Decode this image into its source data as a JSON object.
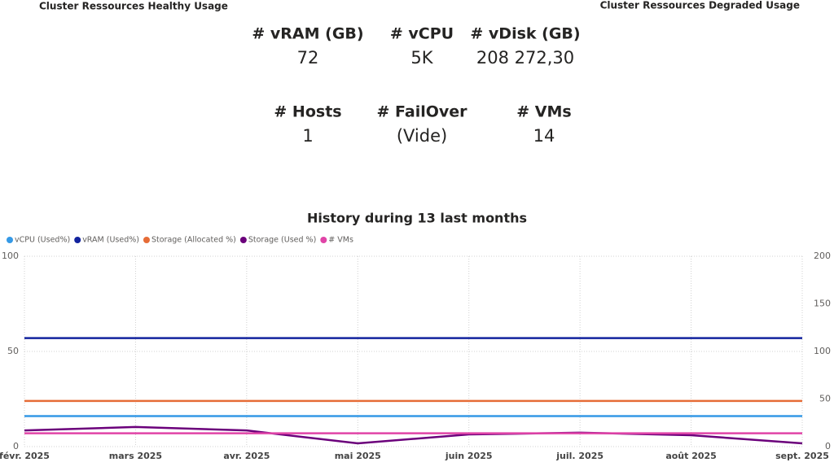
{
  "header": {
    "left": "Cluster Ressources Healthy Usage",
    "right": "Cluster Ressources Degraded Usage"
  },
  "cards": [
    {
      "label": "# vRAM (GB)",
      "value": "72"
    },
    {
      "label": "# vCPU",
      "value": "5K"
    },
    {
      "label": "# vDisk (GB)",
      "value": "208 272,30"
    },
    {
      "label": "# Hosts",
      "value": "1"
    },
    {
      "label": "# FailOver",
      "value": "(Vide)"
    },
    {
      "label": "# VMs",
      "value": "14"
    }
  ],
  "chart_data": {
    "type": "line",
    "title": "History during 13 last months",
    "categories": [
      "févr. 2025",
      "mars 2025",
      "avr. 2025",
      "mai 2025",
      "juin 2025",
      "juil. 2025",
      "août 2025",
      "sept. 2025"
    ],
    "series": [
      {
        "name": "vCPU (Used%)",
        "color": "#3599e6",
        "values": [
          16,
          16,
          16,
          16,
          16,
          16,
          16,
          16
        ]
      },
      {
        "name": "vRAM (Used%)",
        "color": "#12239e",
        "values": [
          57,
          57,
          57,
          57,
          57,
          57,
          57,
          57
        ]
      },
      {
        "name": "Storage (Allocated %)",
        "color": "#e66c37",
        "values": [
          24,
          24,
          24,
          24,
          24,
          24,
          24,
          24
        ]
      },
      {
        "name": "Storage (Used %)",
        "color": "#6b007b",
        "values": [
          8.5,
          10.3,
          8.5,
          1.7,
          6.4,
          7.3,
          6,
          1.7
        ]
      },
      {
        "name": "# VMs",
        "color": "#e044a7",
        "axis": "y2",
        "values": [
          14,
          14,
          14,
          14,
          14,
          14,
          14,
          14
        ]
      }
    ],
    "ylim": [
      0,
      100
    ],
    "yticks": [
      0,
      50,
      100
    ],
    "y2lim": [
      0,
      200
    ],
    "y2ticks": [
      0,
      50,
      100,
      150,
      200
    ],
    "grid": true,
    "legend": "top-left"
  }
}
